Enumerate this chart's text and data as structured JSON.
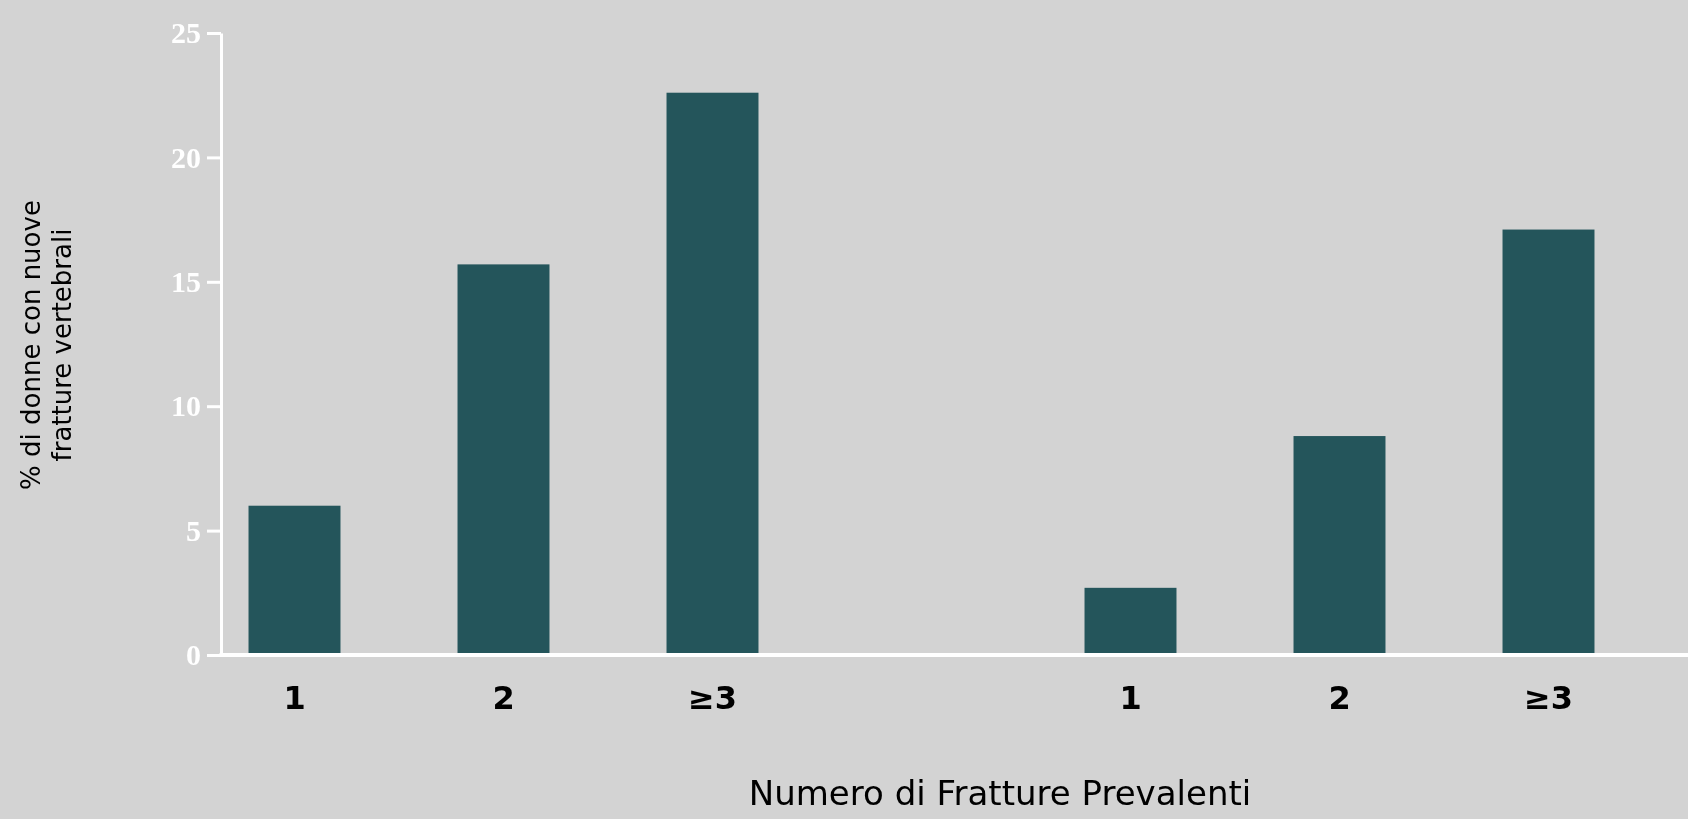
{
  "chart_data": {
    "type": "bar",
    "xlabel": "Numero di Fratture Prevalenti",
    "ylabel": "% di donne con nuove\nfratture vertebrali",
    "categories": [
      "1",
      "2",
      "≥3",
      null,
      "1",
      "2",
      "≥3"
    ],
    "values": [
      6,
      15.7,
      22.6,
      null,
      2.7,
      8.8,
      17.1
    ],
    "color": "#24555b",
    "ylim": [
      0,
      25
    ],
    "yticks": [
      0,
      5,
      10,
      15,
      20,
      25
    ],
    "grid": false
  }
}
